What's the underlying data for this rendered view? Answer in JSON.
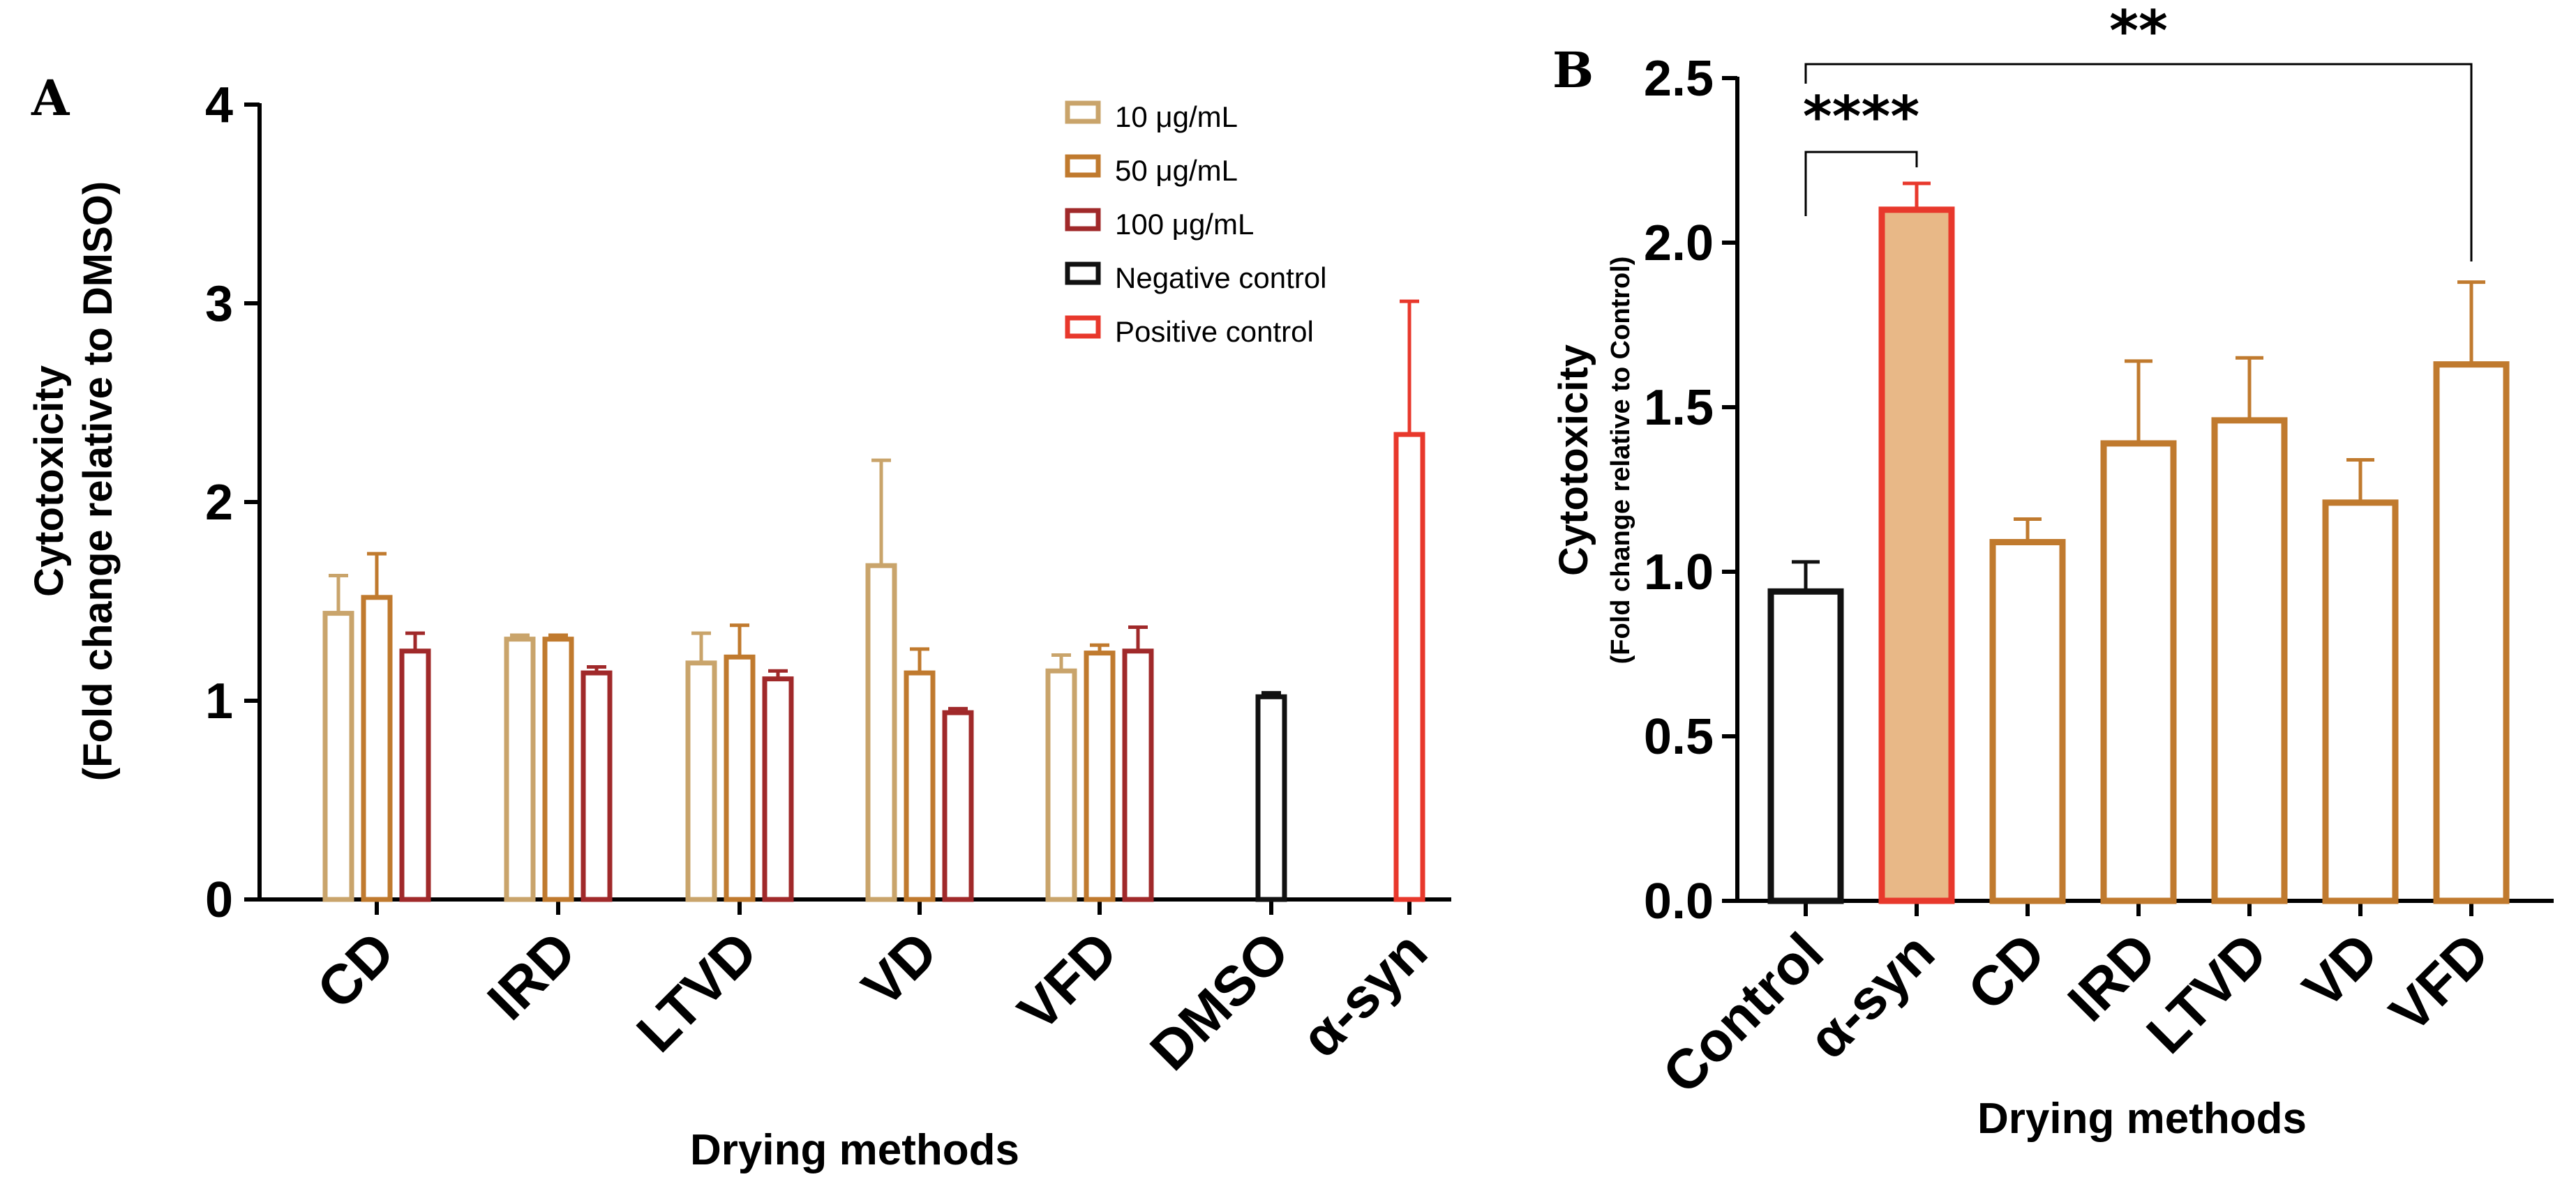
{
  "chart_data": [
    {
      "panel": "A",
      "type": "bar",
      "ylabel_line1": "Cytotoxicity",
      "ylabel_line2": "(Fold change relative to DMSO)",
      "xlabel": "Drying methods",
      "ylim": [
        0,
        4
      ],
      "yticks": [
        "0",
        "1",
        "2",
        "3",
        "4"
      ],
      "categories": [
        "CD",
        "IRD",
        "LTVD",
        "VD",
        "VFD",
        "DMSO",
        "α-syn"
      ],
      "series": [
        {
          "name": "10 μg/mL",
          "color": "#c9a46b",
          "bars": [
            {
              "category": "CD",
              "value": 1.44,
              "error": 0.19
            },
            {
              "category": "IRD",
              "value": 1.31,
              "error": 0.02
            },
            {
              "category": "LTVD",
              "value": 1.19,
              "error": 0.15
            },
            {
              "category": "VD",
              "value": 1.68,
              "error": 0.53
            },
            {
              "category": "VFD",
              "value": 1.15,
              "error": 0.08
            }
          ]
        },
        {
          "name": "50 μg/mL",
          "color": "#c07a2e",
          "bars": [
            {
              "category": "CD",
              "value": 1.52,
              "error": 0.22
            },
            {
              "category": "IRD",
              "value": 1.31,
              "error": 0.02
            },
            {
              "category": "LTVD",
              "value": 1.22,
              "error": 0.16
            },
            {
              "category": "VD",
              "value": 1.14,
              "error": 0.12
            },
            {
              "category": "VFD",
              "value": 1.24,
              "error": 0.04
            }
          ]
        },
        {
          "name": "100 μg/mL",
          "color": "#a0292a",
          "bars": [
            {
              "category": "CD",
              "value": 1.25,
              "error": 0.09
            },
            {
              "category": "IRD",
              "value": 1.14,
              "error": 0.03
            },
            {
              "category": "LTVD",
              "value": 1.11,
              "error": 0.04
            },
            {
              "category": "VD",
              "value": 0.94,
              "error": 0.02
            },
            {
              "category": "VFD",
              "value": 1.25,
              "error": 0.12
            }
          ]
        },
        {
          "name": "Negative control",
          "color": "#111111",
          "bars": [
            {
              "category": "DMSO",
              "value": 1.02,
              "error": 0.02
            }
          ]
        },
        {
          "name": "Positive control",
          "color": "#e8382c",
          "bars": [
            {
              "category": "α-syn",
              "value": 2.34,
              "error": 0.67
            }
          ]
        }
      ],
      "legend": "top-right"
    },
    {
      "panel": "B",
      "type": "bar",
      "ylabel_line1": "Cytotoxicity",
      "ylabel_line2": "(Fold change relative to Control)",
      "xlabel": "Drying methods",
      "ylim": [
        0,
        2.5
      ],
      "yticks": [
        "0.0",
        "0.5",
        "1.0",
        "1.5",
        "2.0",
        "2.5"
      ],
      "categories": [
        "Control",
        "α-syn",
        "CD",
        "IRD",
        "LTVD",
        "VD",
        "VFD"
      ],
      "values": [
        0.94,
        2.1,
        1.09,
        1.39,
        1.46,
        1.21,
        1.63
      ],
      "errors": [
        0.09,
        0.08,
        0.07,
        0.25,
        0.19,
        0.13,
        0.25
      ],
      "edge_colors": [
        "#111111",
        "#e8382c",
        "#c07a2e",
        "#c07a2e",
        "#c07a2e",
        "#c07a2e",
        "#c07a2e"
      ],
      "fill_colors": [
        "#ffffff",
        "#e8b887",
        "#ffffff",
        "#ffffff",
        "#ffffff",
        "#ffffff",
        "#ffffff"
      ],
      "significance": [
        {
          "from": "Control",
          "to": "α-syn",
          "label": "****"
        },
        {
          "from": "Control",
          "to": "VFD",
          "label": "**"
        }
      ]
    }
  ]
}
